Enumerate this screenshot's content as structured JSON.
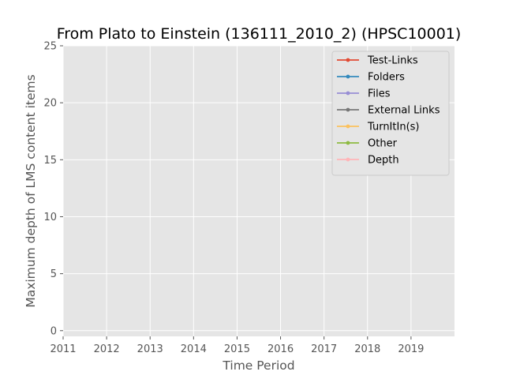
{
  "chart_data": {
    "type": "line",
    "title": "From Plato to Einstein (136111_2010_2) (HPSC10001)",
    "xlabel": "Time Period",
    "ylabel": "Maximum depth of LMS content items",
    "xlim": [
      2011,
      2020
    ],
    "ylim": [
      -0.5,
      25
    ],
    "x_ticks": [
      "2011",
      "2012",
      "2013",
      "2014",
      "2015",
      "2016",
      "2017",
      "2018",
      "2019"
    ],
    "y_ticks": [
      0,
      5,
      10,
      15,
      20,
      25
    ],
    "grid": true,
    "legend_position": "top-right",
    "series": [
      {
        "name": "Test-Links",
        "color": "#E24A33",
        "x": [],
        "y": []
      },
      {
        "name": "Folders",
        "color": "#348ABD",
        "x": [],
        "y": []
      },
      {
        "name": "Files",
        "color": "#988ED5",
        "x": [],
        "y": []
      },
      {
        "name": "External Links",
        "color": "#777777",
        "x": [],
        "y": []
      },
      {
        "name": "TurnItIn(s)",
        "color": "#FBC15E",
        "x": [],
        "y": []
      },
      {
        "name": "Other",
        "color": "#8EBA42",
        "x": [],
        "y": []
      },
      {
        "name": "Depth",
        "color": "#FFB5B8",
        "x": [],
        "y": []
      }
    ]
  }
}
